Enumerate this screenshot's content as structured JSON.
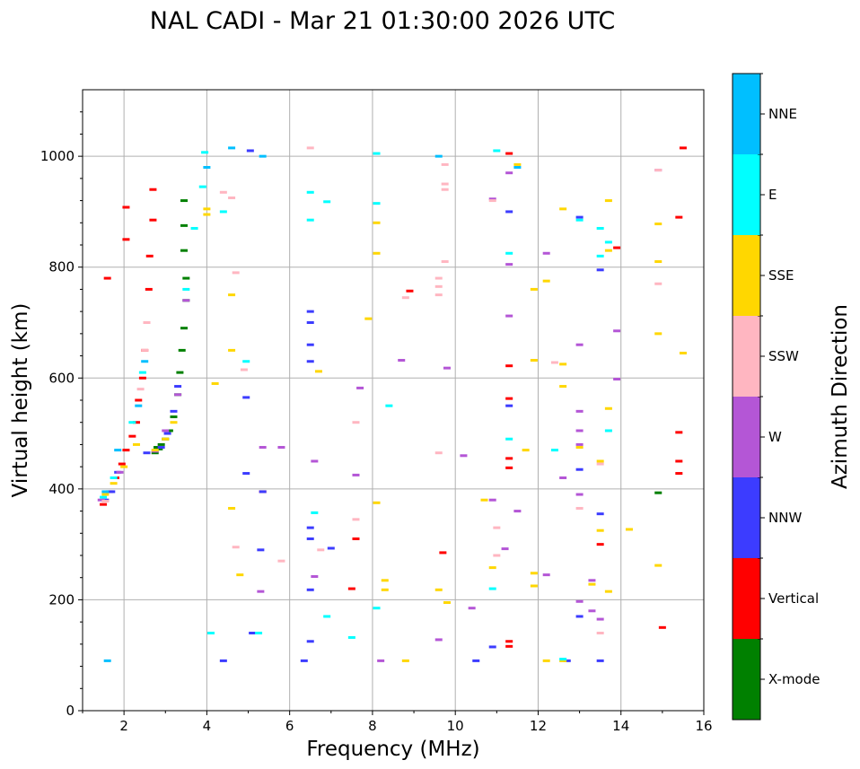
{
  "chart_data": {
    "type": "scatter",
    "title": "NAL CADI - Mar 21 01:30:00 2026 UTC",
    "xlabel": "Frequency (MHz)",
    "ylabel": "Virtual height (km)",
    "xlim": [
      1,
      16
    ],
    "ylim": [
      0,
      1120
    ],
    "xticks": [
      2,
      4,
      6,
      8,
      10,
      12,
      14,
      16
    ],
    "yticks": [
      0,
      200,
      400,
      600,
      800,
      1000
    ],
    "grid": true,
    "colorbar": {
      "label": "Azimuth Direction",
      "categories": [
        "X-mode",
        "Vertical",
        "NNW",
        "W",
        "SSW",
        "SSE",
        "E",
        "NNE"
      ],
      "colors": [
        "#008000",
        "#ff0000",
        "#3c3cff",
        "#b456d6",
        "#ffb6c1",
        "#ffd700",
        "#00ffff",
        "#00bfff"
      ]
    },
    "series": [
      {
        "name": "X-mode",
        "points": [
          [
            2.75,
            465
          ],
          [
            2.8,
            475
          ],
          [
            2.85,
            472
          ],
          [
            2.9,
            480
          ],
          [
            3.0,
            490
          ],
          [
            3.1,
            505
          ],
          [
            3.2,
            530
          ],
          [
            3.3,
            570
          ],
          [
            3.35,
            610
          ],
          [
            3.4,
            650
          ],
          [
            3.45,
            690
          ],
          [
            3.5,
            740
          ],
          [
            3.5,
            780
          ],
          [
            3.45,
            830
          ],
          [
            3.45,
            875
          ],
          [
            3.45,
            920
          ],
          [
            14.9,
            393
          ]
        ]
      },
      {
        "name": "Vertical",
        "points": [
          [
            1.5,
            372
          ],
          [
            1.65,
            395
          ],
          [
            1.8,
            420
          ],
          [
            1.95,
            445
          ],
          [
            2.05,
            470
          ],
          [
            2.2,
            495
          ],
          [
            2.3,
            520
          ],
          [
            2.35,
            560
          ],
          [
            2.45,
            600
          ],
          [
            2.5,
            650
          ],
          [
            2.55,
            700
          ],
          [
            2.6,
            760
          ],
          [
            2.62,
            820
          ],
          [
            2.7,
            885
          ],
          [
            2.7,
            940
          ],
          [
            2.05,
            908
          ],
          [
            2.05,
            850
          ],
          [
            1.6,
            780
          ],
          [
            5.35,
            395
          ],
          [
            7.5,
            220
          ],
          [
            7.6,
            310
          ],
          [
            8.9,
            757
          ],
          [
            9.7,
            285
          ],
          [
            11.3,
            1005
          ],
          [
            11.3,
            622
          ],
          [
            11.3,
            563
          ],
          [
            11.3,
            455
          ],
          [
            11.3,
            438
          ],
          [
            11.3,
            125
          ],
          [
            11.3,
            116
          ],
          [
            13.9,
            835
          ],
          [
            13.5,
            300
          ],
          [
            15.4,
            890
          ],
          [
            15.4,
            502
          ],
          [
            15.4,
            450
          ],
          [
            15.4,
            428
          ],
          [
            15.0,
            150
          ],
          [
            15.5,
            1015
          ]
        ]
      },
      {
        "name": "NNW",
        "points": [
          [
            1.55,
            380
          ],
          [
            1.7,
            395
          ],
          [
            1.85,
            430
          ],
          [
            2.55,
            465
          ],
          [
            2.9,
            475
          ],
          [
            3.05,
            500
          ],
          [
            3.2,
            540
          ],
          [
            3.3,
            585
          ],
          [
            4.95,
            565
          ],
          [
            4.95,
            428
          ],
          [
            5.35,
            395
          ],
          [
            5.05,
            1010
          ],
          [
            6.5,
            720
          ],
          [
            6.5,
            700
          ],
          [
            6.5,
            660
          ],
          [
            6.5,
            630
          ],
          [
            6.5,
            330
          ],
          [
            6.5,
            310
          ],
          [
            6.5,
            218
          ],
          [
            6.5,
            125
          ],
          [
            6.35,
            90
          ],
          [
            10.5,
            90
          ],
          [
            10.9,
            115
          ],
          [
            11.3,
            900
          ],
          [
            11.3,
            550
          ],
          [
            13.0,
            890
          ],
          [
            13.0,
            435
          ],
          [
            13.0,
            170
          ],
          [
            13.5,
            795
          ],
          [
            13.5,
            355
          ],
          [
            13.5,
            90
          ],
          [
            12.7,
            90
          ],
          [
            5.1,
            140
          ],
          [
            5.3,
            290
          ],
          [
            7.0,
            293
          ],
          [
            4.4,
            90
          ]
        ]
      },
      {
        "name": "W",
        "points": [
          [
            1.45,
            380
          ],
          [
            1.9,
            430
          ],
          [
            2.75,
            468
          ],
          [
            3.0,
            505
          ],
          [
            3.3,
            570
          ],
          [
            3.5,
            740
          ],
          [
            5.35,
            475
          ],
          [
            5.8,
            475
          ],
          [
            6.6,
            450
          ],
          [
            6.6,
            242
          ],
          [
            7.6,
            425
          ],
          [
            7.7,
            582
          ],
          [
            8.7,
            632
          ],
          [
            9.8,
            618
          ],
          [
            10.2,
            460
          ],
          [
            10.4,
            185
          ],
          [
            10.9,
            923
          ],
          [
            10.9,
            380
          ],
          [
            11.2,
            292
          ],
          [
            11.3,
            805
          ],
          [
            11.3,
            970
          ],
          [
            11.3,
            712
          ],
          [
            11.5,
            360
          ],
          [
            12.2,
            245
          ],
          [
            12.2,
            825
          ],
          [
            12.6,
            420
          ],
          [
            13.0,
            660
          ],
          [
            13.0,
            505
          ],
          [
            13.0,
            480
          ],
          [
            13.0,
            390
          ],
          [
            13.0,
            540
          ],
          [
            13.3,
            235
          ],
          [
            13.0,
            197
          ],
          [
            13.3,
            180
          ],
          [
            13.5,
            165
          ],
          [
            13.9,
            685
          ],
          [
            13.9,
            598
          ],
          [
            14.9,
            975
          ],
          [
            9.6,
            128
          ],
          [
            8.2,
            90
          ],
          [
            5.3,
            215
          ]
        ]
      },
      {
        "name": "SSW",
        "points": [
          [
            1.55,
            378
          ],
          [
            2.4,
            580
          ],
          [
            2.5,
            650
          ],
          [
            2.55,
            700
          ],
          [
            4.4,
            935
          ],
          [
            4.6,
            925
          ],
          [
            4.7,
            790
          ],
          [
            4.9,
            615
          ],
          [
            4.7,
            295
          ],
          [
            5.8,
            270
          ],
          [
            6.5,
            1015
          ],
          [
            6.75,
            290
          ],
          [
            7.6,
            520
          ],
          [
            7.6,
            345
          ],
          [
            8.8,
            745
          ],
          [
            9.6,
            780
          ],
          [
            9.6,
            765
          ],
          [
            9.6,
            750
          ],
          [
            9.6,
            465
          ],
          [
            9.75,
            985
          ],
          [
            9.75,
            950
          ],
          [
            9.75,
            940
          ],
          [
            9.75,
            810
          ],
          [
            10.9,
            920
          ],
          [
            11.0,
            280
          ],
          [
            11.0,
            330
          ],
          [
            12.4,
            628
          ],
          [
            13.0,
            365
          ],
          [
            13.5,
            445
          ],
          [
            13.5,
            140
          ],
          [
            14.9,
            770
          ],
          [
            14.9,
            975
          ]
        ]
      },
      {
        "name": "SSE",
        "points": [
          [
            1.55,
            390
          ],
          [
            1.75,
            410
          ],
          [
            2.0,
            440
          ],
          [
            2.3,
            480
          ],
          [
            2.75,
            470
          ],
          [
            3.0,
            490
          ],
          [
            3.2,
            520
          ],
          [
            4.0,
            905
          ],
          [
            4.0,
            895
          ],
          [
            4.2,
            590
          ],
          [
            4.6,
            750
          ],
          [
            4.6,
            650
          ],
          [
            4.6,
            365
          ],
          [
            4.8,
            245
          ],
          [
            6.7,
            612
          ],
          [
            7.9,
            707
          ],
          [
            8.1,
            880
          ],
          [
            8.1,
            825
          ],
          [
            8.1,
            375
          ],
          [
            8.3,
            235
          ],
          [
            8.3,
            218
          ],
          [
            8.8,
            90
          ],
          [
            9.6,
            218
          ],
          [
            9.8,
            195
          ],
          [
            10.7,
            380
          ],
          [
            10.9,
            258
          ],
          [
            11.5,
            985
          ],
          [
            11.7,
            470
          ],
          [
            11.9,
            760
          ],
          [
            11.9,
            632
          ],
          [
            11.9,
            248
          ],
          [
            11.9,
            225
          ],
          [
            12.2,
            90
          ],
          [
            12.2,
            775
          ],
          [
            12.6,
            905
          ],
          [
            12.6,
            625
          ],
          [
            12.6,
            585
          ],
          [
            12.6,
            90
          ],
          [
            13.0,
            475
          ],
          [
            13.3,
            228
          ],
          [
            13.5,
            325
          ],
          [
            13.5,
            450
          ],
          [
            13.7,
            920
          ],
          [
            13.7,
            545
          ],
          [
            13.7,
            215
          ],
          [
            13.7,
            830
          ],
          [
            14.2,
            327
          ],
          [
            14.9,
            878
          ],
          [
            14.9,
            810
          ],
          [
            14.9,
            680
          ],
          [
            14.9,
            262
          ],
          [
            15.5,
            645
          ]
        ]
      },
      {
        "name": "E",
        "points": [
          [
            1.5,
            385
          ],
          [
            1.75,
            420
          ],
          [
            2.2,
            520
          ],
          [
            2.45,
            610
          ],
          [
            3.5,
            760
          ],
          [
            3.7,
            870
          ],
          [
            3.9,
            945
          ],
          [
            3.95,
            1007
          ],
          [
            4.4,
            900
          ],
          [
            4.95,
            630
          ],
          [
            5.25,
            140
          ],
          [
            6.5,
            935
          ],
          [
            6.5,
            885
          ],
          [
            6.6,
            357
          ],
          [
            6.9,
            918
          ],
          [
            7.5,
            132
          ],
          [
            8.1,
            1005
          ],
          [
            8.1,
            915
          ],
          [
            8.1,
            185
          ],
          [
            8.4,
            550
          ],
          [
            10.9,
            220
          ],
          [
            11.0,
            1010
          ],
          [
            11.3,
            825
          ],
          [
            11.3,
            490
          ],
          [
            12.4,
            470
          ],
          [
            12.6,
            93
          ],
          [
            13.0,
            885
          ],
          [
            13.5,
            870
          ],
          [
            13.5,
            820
          ],
          [
            13.7,
            845
          ],
          [
            13.7,
            505
          ],
          [
            4.1,
            140
          ],
          [
            6.9,
            170
          ]
        ]
      },
      {
        "name": "NNE",
        "points": [
          [
            1.55,
            395
          ],
          [
            1.85,
            470
          ],
          [
            2.35,
            550
          ],
          [
            2.5,
            630
          ],
          [
            4.0,
            980
          ],
          [
            4.6,
            1015
          ],
          [
            5.35,
            1000
          ],
          [
            9.6,
            1000
          ],
          [
            11.5,
            980
          ],
          [
            1.6,
            90
          ]
        ]
      }
    ]
  }
}
